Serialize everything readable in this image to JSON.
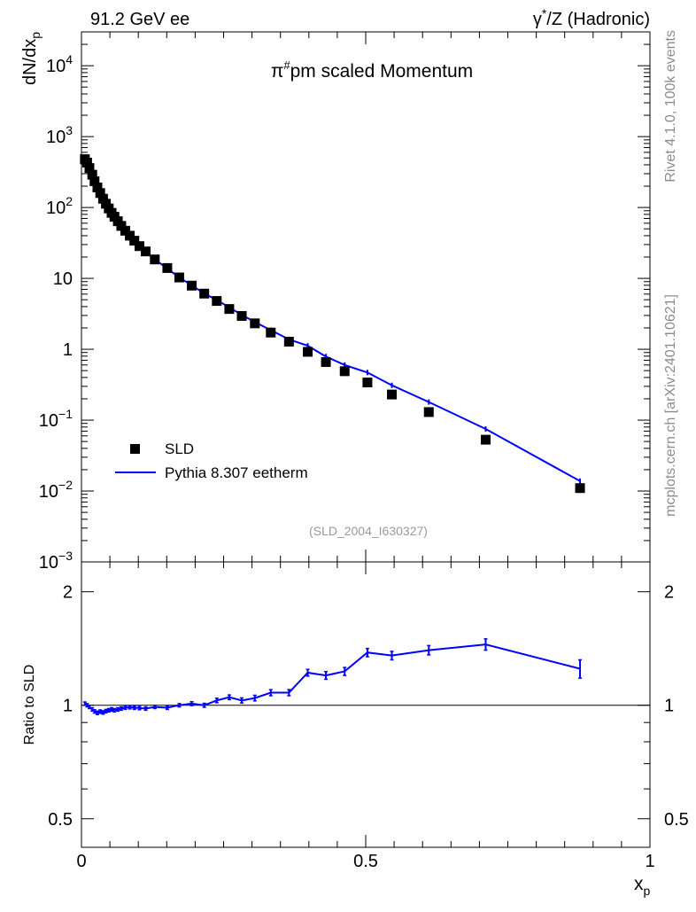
{
  "header": {
    "left_title": "91.2 GeV ee",
    "right_title_symbol": "γ",
    "right_title_star": "*",
    "right_title_rest": "/Z (Hadronic)"
  },
  "side_labels": {
    "rivet": "Rivet 4.1.0,  100k events",
    "mcplots": "mcplots.cern.ch [arXiv:2401.10621]"
  },
  "chart_data": [
    {
      "type": "scatter",
      "title_pre": "π",
      "title_sup": "#",
      "title_post": "pm scaled Momentum",
      "ylabel_main": "dN/dx",
      "ylabel_sub": "p",
      "yscale": "log",
      "ylim": [
        0.001,
        30000
      ],
      "xlim": [
        0,
        1
      ],
      "analysis_id": "(SLD_2004_I630327)",
      "legend": {
        "position": "bottom-left",
        "entries": [
          "SLD",
          "Pythia 8.307 eetherm"
        ]
      },
      "yticks": [
        {
          "value": 0.001,
          "label": "10",
          "exp": "−3"
        },
        {
          "value": 0.01,
          "label": "10",
          "exp": "−2"
        },
        {
          "value": 0.1,
          "label": "10",
          "exp": "−1"
        },
        {
          "value": 1,
          "label": "1",
          "exp": ""
        },
        {
          "value": 10,
          "label": "10",
          "exp": ""
        },
        {
          "value": 100,
          "label": "10",
          "exp": "2"
        },
        {
          "value": 1000,
          "label": "10",
          "exp": "3"
        },
        {
          "value": 10000,
          "label": "10",
          "exp": "4"
        }
      ],
      "series": [
        {
          "name": "SLD",
          "x": [
            0.006,
            0.01,
            0.014,
            0.019,
            0.023,
            0.028,
            0.033,
            0.038,
            0.043,
            0.048,
            0.053,
            0.058,
            0.064,
            0.07,
            0.077,
            0.085,
            0.093,
            0.102,
            0.113,
            0.129,
            0.151,
            0.172,
            0.194,
            0.216,
            0.238,
            0.26,
            0.282,
            0.305,
            0.333,
            0.365,
            0.398,
            0.43,
            0.463,
            0.503,
            0.546,
            0.611,
            0.711,
            0.877
          ],
          "y": [
            480,
            430,
            360,
            290,
            235,
            192,
            160,
            133,
            113,
            97,
            84,
            74,
            64,
            55,
            47,
            40,
            34,
            28.5,
            24,
            18.5,
            14,
            10.3,
            7.9,
            6.1,
            4.8,
            3.7,
            2.95,
            2.32,
            1.72,
            1.28,
            0.92,
            0.66,
            0.49,
            0.34,
            0.23,
            0.13,
            0.053,
            0.011
          ]
        },
        {
          "name": "Pythia 8.307 eetherm",
          "x": [
            0.006,
            0.01,
            0.014,
            0.019,
            0.023,
            0.028,
            0.033,
            0.038,
            0.043,
            0.048,
            0.053,
            0.058,
            0.064,
            0.07,
            0.077,
            0.085,
            0.093,
            0.102,
            0.113,
            0.129,
            0.151,
            0.172,
            0.194,
            0.216,
            0.238,
            0.26,
            0.282,
            0.305,
            0.333,
            0.365,
            0.398,
            0.43,
            0.463,
            0.503,
            0.546,
            0.611,
            0.711,
            0.877
          ],
          "y": [
            485,
            430,
            356,
            283,
            226,
            183,
            154,
            127,
            109,
            94,
            82,
            72,
            62,
            54,
            46,
            39.5,
            33.5,
            28,
            23.5,
            18.5,
            13.8,
            10.3,
            8.0,
            6.1,
            4.95,
            3.9,
            3.05,
            2.42,
            1.86,
            1.38,
            1.12,
            0.79,
            0.6,
            0.47,
            0.31,
            0.18,
            0.075,
            0.0138
          ]
        }
      ]
    },
    {
      "type": "line",
      "ylabel": "Ratio to SLD",
      "yscale": "log",
      "ylim": [
        0.42,
        2.4
      ],
      "xlim": [
        0,
        1
      ],
      "xlabel_main": "x",
      "xlabel_sub": "p",
      "yticks": [
        {
          "value": 0.5,
          "label": "0.5"
        },
        {
          "value": 1,
          "label": "1"
        },
        {
          "value": 2,
          "label": "2"
        }
      ],
      "xticks": [
        {
          "value": 0,
          "label": "0"
        },
        {
          "value": 0.5,
          "label": "0.5"
        },
        {
          "value": 1,
          "label": "1"
        }
      ],
      "series": [
        {
          "name": "Pythia 8.307 eetherm / SLD",
          "x": [
            0.006,
            0.01,
            0.014,
            0.019,
            0.023,
            0.028,
            0.033,
            0.038,
            0.043,
            0.048,
            0.053,
            0.058,
            0.064,
            0.07,
            0.077,
            0.085,
            0.093,
            0.102,
            0.113,
            0.129,
            0.151,
            0.172,
            0.194,
            0.216,
            0.238,
            0.26,
            0.282,
            0.305,
            0.333,
            0.365,
            0.398,
            0.43,
            0.463,
            0.503,
            0.546,
            0.611,
            0.711,
            0.877
          ],
          "y": [
            1.01,
            1.0,
            0.99,
            0.975,
            0.963,
            0.955,
            0.962,
            0.957,
            0.965,
            0.97,
            0.975,
            0.97,
            0.975,
            0.98,
            0.985,
            0.988,
            0.985,
            0.983,
            0.98,
            0.99,
            0.985,
            1.0,
            1.01,
            1.0,
            1.03,
            1.05,
            1.03,
            1.045,
            1.08,
            1.08,
            1.22,
            1.2,
            1.23,
            1.38,
            1.355,
            1.4,
            1.45,
            1.25
          ],
          "err": [
            0.01,
            0.01,
            0.01,
            0.01,
            0.01,
            0.01,
            0.01,
            0.01,
            0.01,
            0.01,
            0.01,
            0.01,
            0.01,
            0.01,
            0.01,
            0.01,
            0.01,
            0.01,
            0.01,
            0.01,
            0.01,
            0.01,
            0.012,
            0.012,
            0.014,
            0.015,
            0.016,
            0.018,
            0.02,
            0.02,
            0.025,
            0.028,
            0.03,
            0.035,
            0.035,
            0.04,
            0.05,
            0.07
          ]
        }
      ]
    }
  ]
}
